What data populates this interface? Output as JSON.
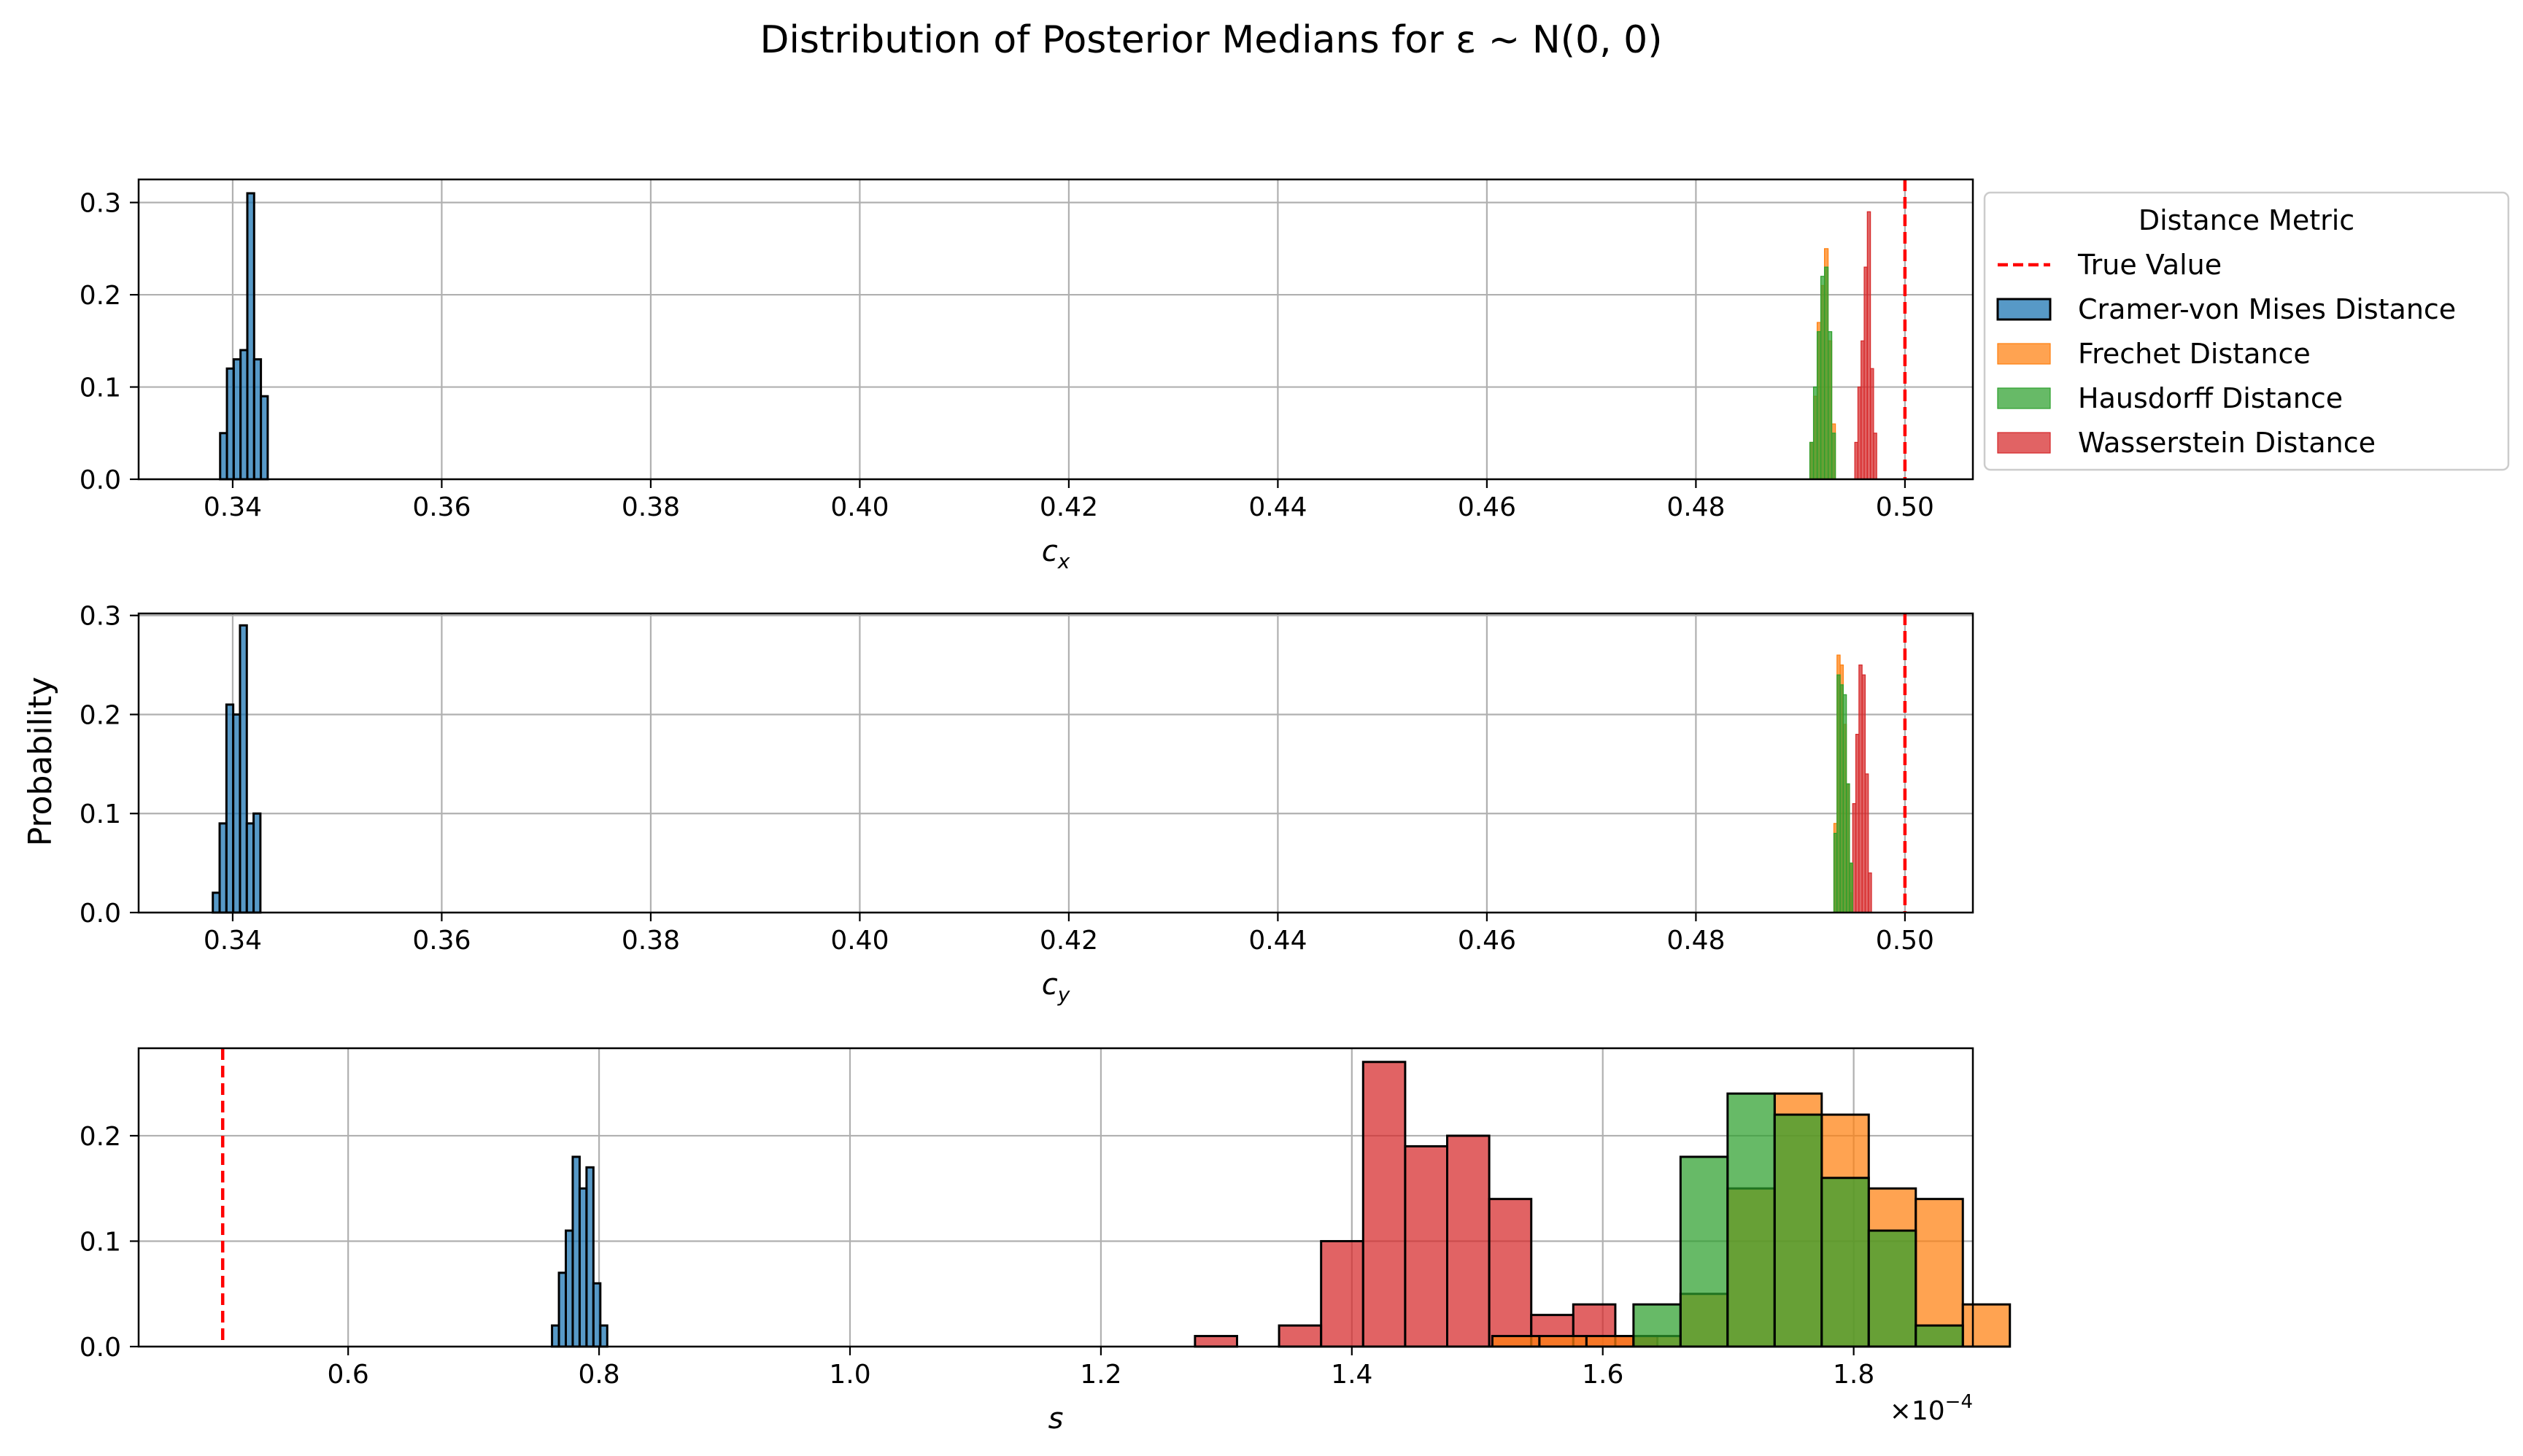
{
  "title": "Distribution of Posterior Medians for ε ~ N(0, 0)",
  "ylabel": "Probability",
  "legend": {
    "title": "Distance Metric",
    "placement": "upper right, outside the axes",
    "entries": [
      {
        "label": "True Value",
        "kind": "line",
        "color": "#ff0000"
      },
      {
        "label": "Cramer-von Mises Distance",
        "kind": "patch",
        "color": "#1f77b4"
      },
      {
        "label": "Frechet Distance",
        "kind": "patch",
        "color": "#ff7f0e"
      },
      {
        "label": "Hausdorff Distance",
        "kind": "patch",
        "color": "#2ca02c"
      },
      {
        "label": "Wasserstein Distance",
        "kind": "patch",
        "color": "#d62728"
      }
    ]
  },
  "chart_data": [
    {
      "type": "histogram",
      "xlabel": "c_x",
      "xlabel_base": "c",
      "xlabel_sub": "x",
      "ylabel": "Probability",
      "xlim": [
        0.331,
        0.5065
      ],
      "ylim": [
        0,
        0.325
      ],
      "xticks": [
        0.34,
        0.36,
        0.38,
        0.4,
        0.42,
        0.44,
        0.46,
        0.48,
        0.5
      ],
      "xtick_labels": [
        "0.34",
        "0.36",
        "0.38",
        "0.40",
        "0.42",
        "0.44",
        "0.46",
        "0.48",
        "0.50"
      ],
      "yticks": [
        0,
        0.1,
        0.2,
        0.3
      ],
      "ytick_labels": [
        "0.0",
        "0.1",
        "0.2",
        "0.3"
      ],
      "grid": true,
      "true_value": 0.5,
      "series": [
        {
          "name": "Cramer-von Mises Distance",
          "color": "#1f77b4",
          "bin_start": 0.3388,
          "bin_width": 0.00065,
          "values": [
            0.05,
            0.12,
            0.13,
            0.14,
            0.31,
            0.13,
            0.09
          ]
        },
        {
          "name": "Frechet Distance",
          "color": "#ff7f0e",
          "bin_start": 0.4909,
          "bin_width": 0.00035,
          "values": [
            0.04,
            0.09,
            0.17,
            0.21,
            0.25,
            0.15,
            0.06
          ]
        },
        {
          "name": "Hausdorff Distance",
          "color": "#2ca02c",
          "bin_start": 0.4909,
          "bin_width": 0.00035,
          "values": [
            0.04,
            0.1,
            0.16,
            0.22,
            0.23,
            0.16,
            0.05
          ]
        },
        {
          "name": "Wasserstein Distance",
          "color": "#d62728",
          "bin_start": 0.4952,
          "bin_width": 0.0003,
          "values": [
            0.04,
            0.1,
            0.15,
            0.23,
            0.29,
            0.12,
            0.05
          ]
        }
      ]
    },
    {
      "type": "histogram",
      "xlabel": "c_y",
      "xlabel_base": "c",
      "xlabel_sub": "y",
      "ylabel": "Probability",
      "xlim": [
        0.331,
        0.5065
      ],
      "ylim": [
        0,
        0.302
      ],
      "xticks": [
        0.34,
        0.36,
        0.38,
        0.4,
        0.42,
        0.44,
        0.46,
        0.48,
        0.5
      ],
      "xtick_labels": [
        "0.34",
        "0.36",
        "0.38",
        "0.40",
        "0.42",
        "0.44",
        "0.46",
        "0.48",
        "0.50"
      ],
      "yticks": [
        0,
        0.1,
        0.2,
        0.3
      ],
      "ytick_labels": [
        "0.0",
        "0.1",
        "0.2",
        "0.3"
      ],
      "grid": true,
      "true_value": 0.5,
      "series": [
        {
          "name": "Cramer-von Mises Distance",
          "color": "#1f77b4",
          "bin_start": 0.3381,
          "bin_width": 0.00065,
          "values": [
            0.02,
            0.09,
            0.21,
            0.2,
            0.29,
            0.09,
            0.1
          ]
        },
        {
          "name": "Frechet Distance",
          "color": "#ff7f0e",
          "bin_start": 0.4932,
          "bin_width": 0.0003,
          "values": [
            0.09,
            0.26,
            0.25,
            0.19,
            0.13,
            0.05
          ]
        },
        {
          "name": "Hausdorff Distance",
          "color": "#2ca02c",
          "bin_start": 0.4932,
          "bin_width": 0.0003,
          "values": [
            0.08,
            0.24,
            0.23,
            0.22,
            0.13,
            0.05
          ]
        },
        {
          "name": "Wasserstein Distance",
          "color": "#d62728",
          "bin_start": 0.4947,
          "bin_width": 0.0003,
          "values": [
            0.02,
            0.11,
            0.18,
            0.25,
            0.24,
            0.14,
            0.04
          ]
        }
      ]
    },
    {
      "type": "histogram",
      "xlabel": "s",
      "xlabel_base": "s",
      "xlabel_sub": "",
      "ylabel": "Probability",
      "xlim": [
        0.433,
        1.895
      ],
      "ylim": [
        0,
        0.283
      ],
      "xticks": [
        0.6,
        0.8,
        1.0,
        1.2,
        1.4,
        1.6,
        1.8
      ],
      "xtick_labels": [
        "0.6",
        "0.8",
        "1.0",
        "1.2",
        "1.4",
        "1.6",
        "1.8"
      ],
      "yticks": [
        0,
        0.1,
        0.2
      ],
      "ytick_labels": [
        "0.0",
        "0.1",
        "0.2"
      ],
      "grid": true,
      "true_value": 0.5,
      "scale_multiplier_base": "×10",
      "scale_multiplier_exponent": "−4",
      "series": [
        {
          "name": "Cramer-von Mises Distance",
          "color": "#1f77b4",
          "bin_start": 0.7625,
          "bin_width": 0.0055,
          "values": [
            0.02,
            0.07,
            0.11,
            0.18,
            0.15,
            0.17,
            0.06,
            0.02
          ]
        },
        {
          "name": "Frechet Distance",
          "color": "#ff7f0e",
          "bin_start": 1.512,
          "bin_width": 0.0375,
          "values": [
            0.01,
            0.01,
            0.01,
            0.01,
            0.05,
            0.15,
            0.24,
            0.22,
            0.15,
            0.14,
            0.04
          ]
        },
        {
          "name": "Hausdorff Distance",
          "color": "#2ca02c",
          "bin_start": 1.512,
          "bin_width": 0.0375,
          "values": [
            0,
            0,
            0,
            0.04,
            0.18,
            0.24,
            0.22,
            0.16,
            0.11,
            0.02
          ]
        },
        {
          "name": "Wasserstein Distance",
          "color": "#d62728",
          "bin_start": 1.275,
          "bin_width": 0.0335,
          "values": [
            0.01,
            0,
            0.02,
            0.1,
            0.27,
            0.19,
            0.2,
            0.14,
            0.03,
            0.04,
            0.01
          ]
        }
      ]
    }
  ]
}
